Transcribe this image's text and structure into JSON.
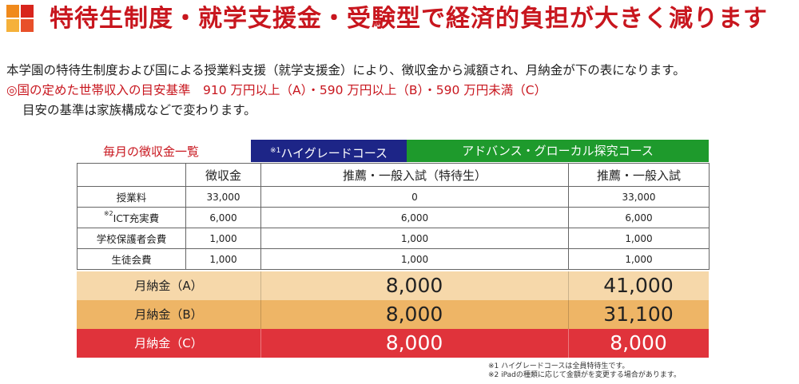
{
  "header": {
    "title": "特待生制度・就学支援金・受験型で経済的負担が大きく減ります",
    "logo_colors": [
      "#f08a1c",
      "#d8251c",
      "#f5b13a",
      "#e8502a"
    ]
  },
  "intro": {
    "line1": "本学園の特待生制度および国による授業料支援（就学支援金）により、徴収金から減額され、月納金が下の表になります。",
    "line2": "◎国の定めた世帯収入の目安基準　910 万円以上（A）・590 万円以上（B）・590 万円未満（C）",
    "line3": "目安の基準は家族構成などで変わります。"
  },
  "table": {
    "caption": "毎月の徴収金一覧",
    "course_high_mark": "※1",
    "course_high": "ハイグレードコース",
    "course_advance": "アドバンス・グローカル探究コース",
    "col_fee": "徴収金",
    "col_high": "推薦・一般入試（特待生）",
    "col_advance": "推薦・一般入試",
    "rows": [
      {
        "mark": "",
        "item": "授業料",
        "fee": "33,000",
        "high": "0",
        "advance": "33,000"
      },
      {
        "mark": "※2",
        "item": "ICT充実費",
        "fee": "6,000",
        "high": "6,000",
        "advance": "6,000"
      },
      {
        "mark": "",
        "item": "学校保護者会費",
        "fee": "1,000",
        "high": "1,000",
        "advance": "1,000"
      },
      {
        "mark": "",
        "item": "生徒会費",
        "fee": "1,000",
        "high": "1,000",
        "advance": "1,000"
      }
    ],
    "totals": [
      {
        "label": "月納金（A）",
        "high": "8,000",
        "advance": "41,000"
      },
      {
        "label": "月納金（B）",
        "high": "8,000",
        "advance": "31,100"
      },
      {
        "label": "月納金（C）",
        "high": "8,000",
        "advance": "8,000"
      }
    ],
    "colors": {
      "high_header": "#1d2587",
      "advance_header": "#1e9a2c",
      "total_a": "#f6d8aa",
      "total_b": "#eeb566",
      "total_c": "#e0333b"
    }
  },
  "notes": [
    "※1  ハイグレードコースは全員特待生です。",
    "※2  iPadの種類に応じて金額がを変更する場合があります。"
  ]
}
